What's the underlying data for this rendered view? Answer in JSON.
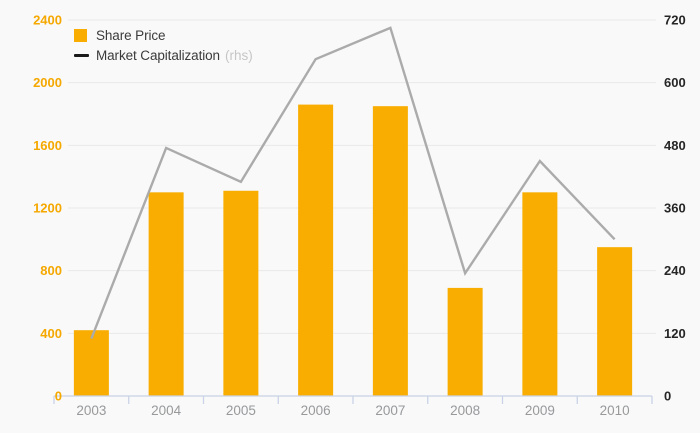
{
  "chart_data": {
    "type": "bar",
    "title": "",
    "categories": [
      "2003",
      "2004",
      "2005",
      "2006",
      "2007",
      "2008",
      "2009",
      "2010"
    ],
    "series": [
      {
        "name": "Share Price",
        "type": "bar",
        "axis": "left",
        "color": "#F8AD00",
        "values": [
          420,
          1300,
          1310,
          1860,
          1850,
          690,
          1300,
          950
        ]
      },
      {
        "name": "Market Capitalization",
        "suffix": "(rhs)",
        "type": "line",
        "axis": "right",
        "color": "#ABABAB",
        "legend_color": "#1A1A1A",
        "values": [
          110,
          475,
          410,
          645,
          705,
          235,
          450,
          300
        ]
      }
    ],
    "left_axis": {
      "min": 0,
      "max": 2400,
      "ticks": [
        0,
        400,
        800,
        1200,
        1600,
        2000,
        2400
      ],
      "label_color": "#F5A800"
    },
    "right_axis": {
      "min": 0,
      "max": 720,
      "ticks": [
        0,
        120,
        240,
        360,
        480,
        600,
        720
      ],
      "label_color": "#262626"
    },
    "x_axis": {
      "label_color": "#97999B",
      "line_color": "#C9D2E6"
    },
    "grid": {
      "show": true,
      "color": "#E9E9E9"
    },
    "background": "#F9F9F9",
    "legend_position": "top-left"
  }
}
